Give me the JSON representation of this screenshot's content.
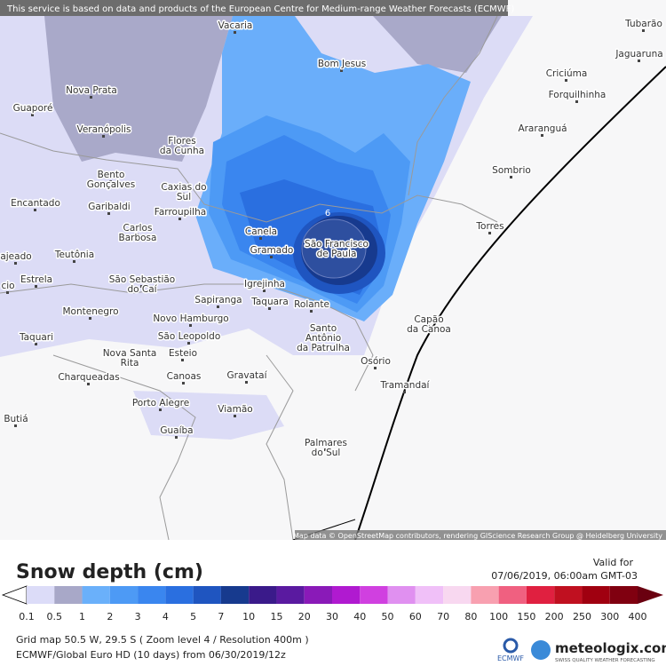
{
  "header": {
    "notice": "This service is based on data and products of the European Centre for Medium-range Weather Forecasts (ECMWF)"
  },
  "map": {
    "places": [
      [
        "Vacaria"
      ],
      [
        "Bom Jesus"
      ],
      [
        "Nova Prata"
      ],
      [
        "Guaporé"
      ],
      [
        "Veranópolis"
      ],
      [
        "Flores",
        "da Cunha"
      ],
      [
        "Bento",
        "Gonçalves"
      ],
      [
        "Caxias do",
        "Sul"
      ],
      [
        "Encantado"
      ],
      [
        "Garibaldi"
      ],
      [
        "Farroupilha"
      ],
      [
        "Carlos",
        "Barbosa"
      ],
      [
        "Canela"
      ],
      [
        "Gramado"
      ],
      [
        "São Francisco",
        "de Paula"
      ],
      [
        "ajeado"
      ],
      [
        "Teutônia"
      ],
      [
        "Estrela"
      ],
      [
        "cio"
      ],
      [
        "São Sebastião",
        "do Caí"
      ],
      [
        "Igrejinha"
      ],
      [
        "Sapiranga"
      ],
      [
        "Taquara"
      ],
      [
        "Rolante"
      ],
      [
        "Montenegro"
      ],
      [
        "Novo Hamburgo"
      ],
      [
        "Santo",
        "Antônio",
        "da Patrulha"
      ],
      [
        "Taquari"
      ],
      [
        "São Leopoldo"
      ],
      [
        "Capão",
        "da Canoa"
      ],
      [
        "Nova Santa",
        "Rita"
      ],
      [
        "Esteio"
      ],
      [
        "Osório"
      ],
      [
        "Charqueadas"
      ],
      [
        "Canoas"
      ],
      [
        "Gravataí"
      ],
      [
        "Tramandaí"
      ],
      [
        "Porto Alegre"
      ],
      [
        "Viamão"
      ],
      [
        "Guaíba"
      ],
      [
        "Butiá"
      ],
      [
        "Palmares",
        "do Sul"
      ],
      [
        "Criciúma"
      ],
      [
        "Forquilhinha"
      ],
      [
        "Araranguá"
      ],
      [
        "Sombrio"
      ],
      [
        "Torres"
      ],
      [
        "Jaguaruna"
      ],
      [
        "Tubarão"
      ]
    ],
    "contour_label": "6",
    "attribution": "Map data © OpenStreetMap contributors, rendering GIScience Research Group @ Heidelberg University"
  },
  "legend": {
    "title": "Snow depth (cm)",
    "valid_label": "Valid for",
    "valid_time": "07/06/2019, 06:00am GMT-03",
    "scale_labels": [
      "0.1",
      "0.5",
      "1",
      "2",
      "3",
      "4",
      "5",
      "7",
      "10",
      "15",
      "20",
      "30",
      "40",
      "50",
      "60",
      "70",
      "80",
      "100",
      "150",
      "200",
      "250",
      "300",
      "400"
    ]
  },
  "footer": {
    "grid_info": "Grid map 50.5 W, 29.5 S ( Zoom level 4 / Resolution 400m )",
    "model_info": "ECMWF/Global Euro HD (10 days) from 06/30/2019/12z",
    "ecmwf_logo": "ECMWF",
    "brand": "meteologix.com",
    "tagline": "SWISS QUALITY WEATHER FORECASTING"
  }
}
